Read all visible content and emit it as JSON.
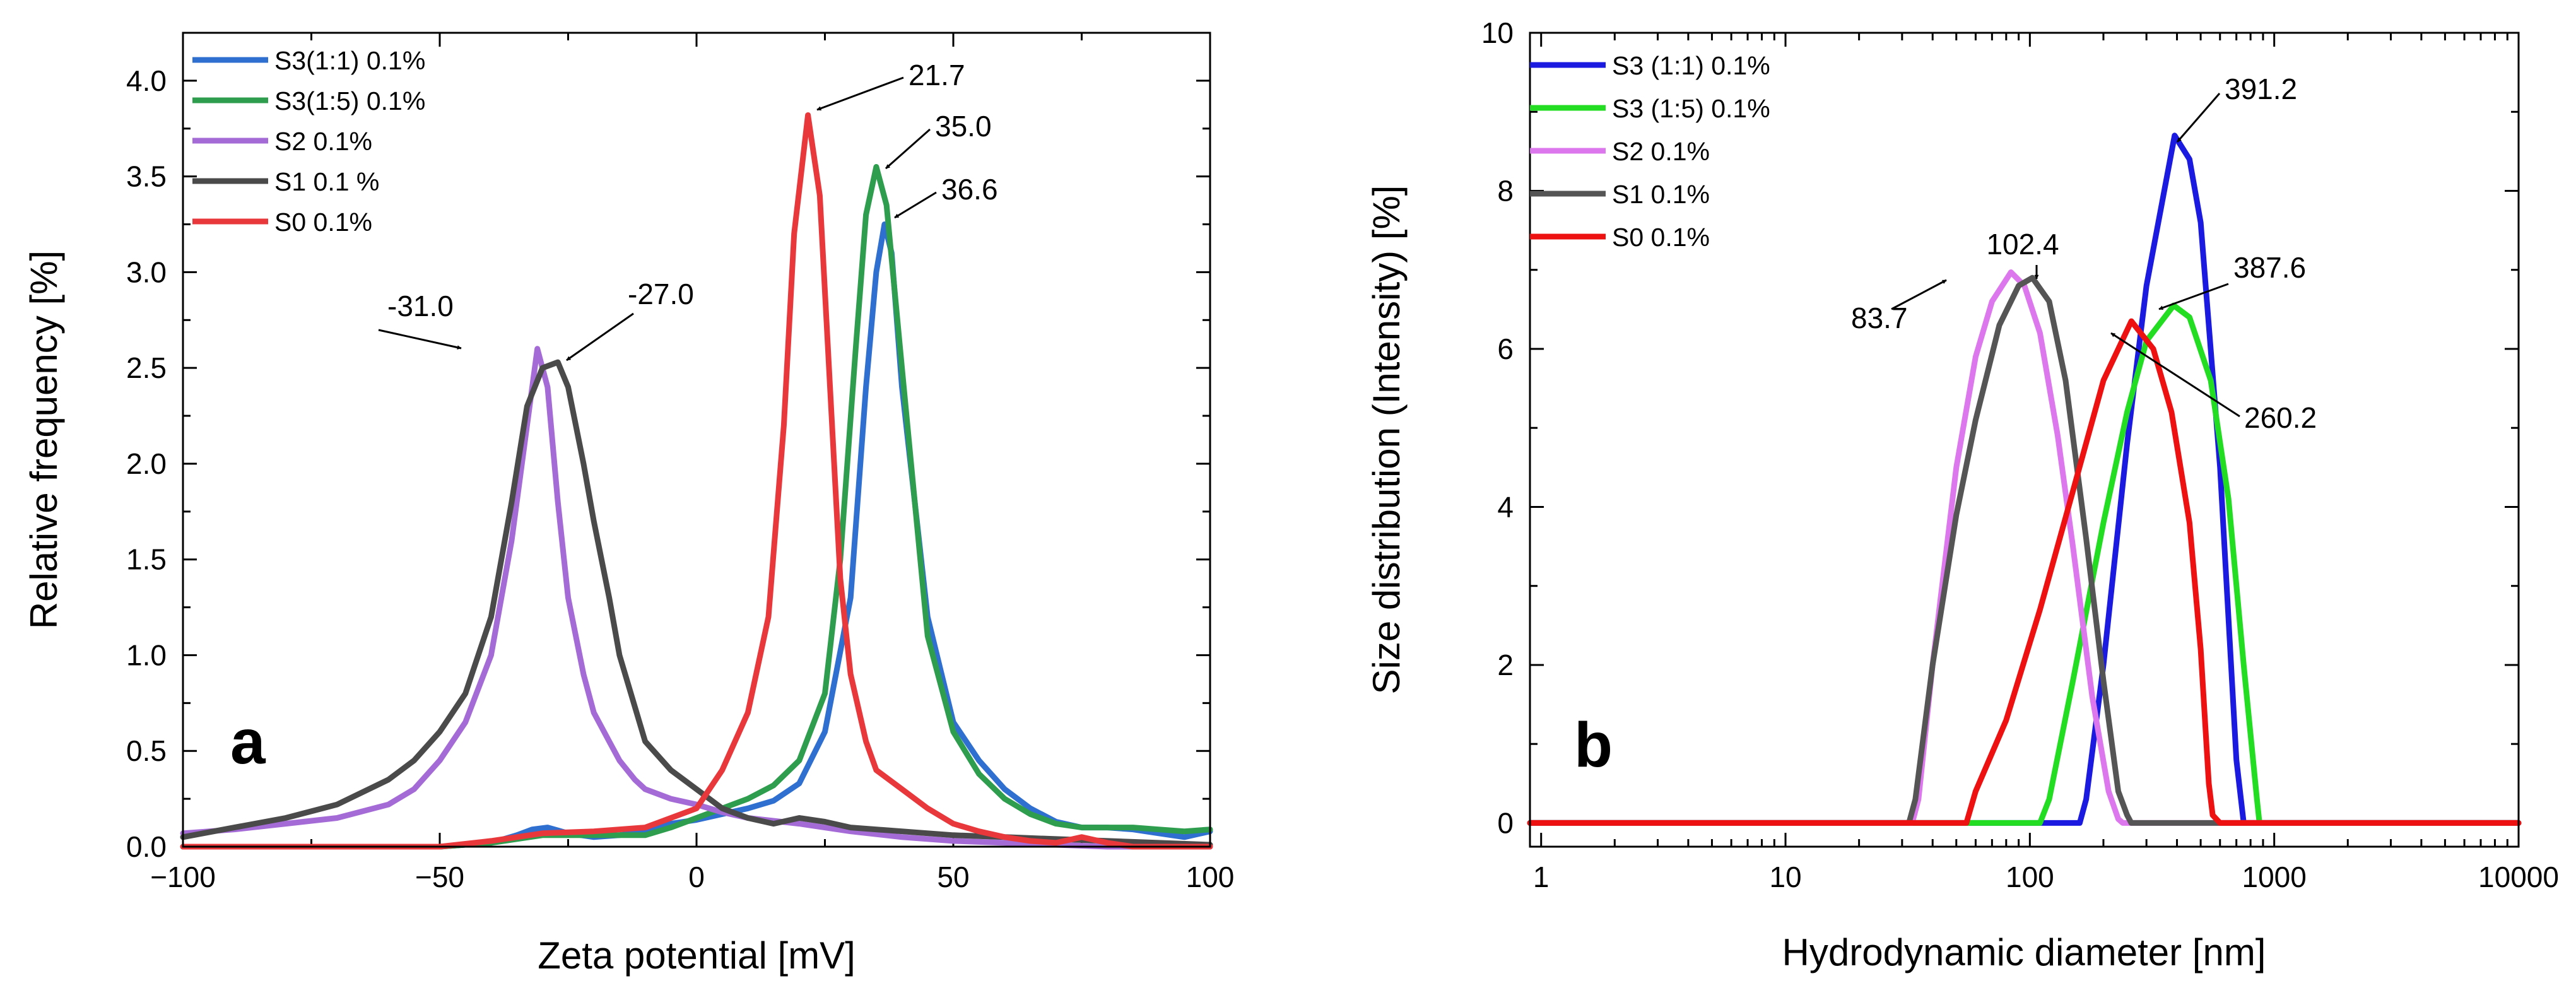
{
  "chart_data": [
    {
      "panel": "a",
      "type": "line",
      "panel_label": "a",
      "xlabel": "Zeta potential [mV]",
      "ylabel": "Relative frequency [%]",
      "xlim": [
        -100,
        100
      ],
      "ylim": [
        0,
        4.25
      ],
      "x_scale": "linear",
      "x_ticks": [
        -100,
        -50,
        0,
        50,
        100
      ],
      "x_tick_labels": [
        "−100",
        "−50",
        "0",
        "50",
        "100"
      ],
      "y_ticks": [
        0,
        0.5,
        1,
        1.5,
        2,
        2.5,
        3,
        3.5,
        4
      ],
      "y_tick_labels": [
        "0.0",
        "0.5",
        "1.0",
        "1.5",
        "2.0",
        "2.5",
        "3.0",
        "3.5",
        "4.0"
      ],
      "legend_position": "top-left",
      "series": [
        {
          "name": "S3(1:1) 0.1%",
          "color": "#2f6fd0",
          "x": [
            -100,
            -50,
            -40,
            -35,
            -32,
            -29,
            -25,
            -20,
            -15,
            -10,
            -5,
            0,
            5,
            10,
            15,
            20,
            25,
            30,
            33,
            35,
            36.6,
            38,
            40,
            45,
            50,
            55,
            60,
            65,
            70,
            75,
            80,
            85,
            90,
            95,
            100
          ],
          "y": [
            0,
            0,
            0.02,
            0.06,
            0.09,
            0.1,
            0.07,
            0.05,
            0.06,
            0.08,
            0.12,
            0.14,
            0.17,
            0.2,
            0.24,
            0.33,
            0.6,
            1.3,
            2.4,
            3.0,
            3.25,
            3.1,
            2.4,
            1.2,
            0.65,
            0.45,
            0.3,
            0.2,
            0.13,
            0.1,
            0.1,
            0.09,
            0.07,
            0.05,
            0.08
          ]
        },
        {
          "name": "S3(1:5) 0.1%",
          "color": "#2e9e4e",
          "x": [
            -100,
            -50,
            -40,
            -30,
            -20,
            -10,
            -5,
            0,
            5,
            10,
            15,
            20,
            25,
            28,
            31,
            33,
            35,
            37,
            40,
            45,
            50,
            55,
            60,
            65,
            70,
            75,
            80,
            85,
            90,
            95,
            100
          ],
          "y": [
            0,
            0,
            0.02,
            0.06,
            0.06,
            0.06,
            0.1,
            0.15,
            0.2,
            0.25,
            0.32,
            0.45,
            0.8,
            1.5,
            2.6,
            3.3,
            3.55,
            3.35,
            2.5,
            1.1,
            0.6,
            0.38,
            0.25,
            0.17,
            0.12,
            0.1,
            0.1,
            0.1,
            0.09,
            0.08,
            0.09
          ]
        },
        {
          "name": "S2 0.1%",
          "color": "#a46ad6",
          "x": [
            -100,
            -90,
            -80,
            -70,
            -60,
            -55,
            -50,
            -45,
            -40,
            -36,
            -33,
            -31,
            -29,
            -27,
            -25,
            -22,
            -20,
            -17,
            -15,
            -12,
            -10,
            -5,
            0,
            5,
            10,
            20,
            30,
            40,
            50,
            60,
            70,
            80,
            90,
            100
          ],
          "y": [
            0.07,
            0.09,
            0.12,
            0.15,
            0.22,
            0.3,
            0.45,
            0.65,
            1.0,
            1.6,
            2.2,
            2.6,
            2.4,
            1.8,
            1.3,
            0.9,
            0.7,
            0.55,
            0.45,
            0.35,
            0.3,
            0.25,
            0.22,
            0.18,
            0.15,
            0.12,
            0.08,
            0.05,
            0.03,
            0.02,
            0.01,
            0,
            0,
            0
          ]
        },
        {
          "name": "S1 0.1 %",
          "color": "#4a4a4a",
          "x": [
            -100,
            -90,
            -80,
            -70,
            -60,
            -55,
            -50,
            -45,
            -40,
            -36,
            -33,
            -30,
            -27,
            -25,
            -22,
            -20,
            -17,
            -15,
            -10,
            -5,
            0,
            5,
            10,
            15,
            20,
            25,
            30,
            40,
            50,
            60,
            70,
            80,
            90,
            100
          ],
          "y": [
            0.05,
            0.1,
            0.15,
            0.22,
            0.35,
            0.45,
            0.6,
            0.8,
            1.2,
            1.8,
            2.3,
            2.5,
            2.53,
            2.4,
            2.0,
            1.7,
            1.3,
            1.0,
            0.55,
            0.4,
            0.3,
            0.2,
            0.15,
            0.12,
            0.15,
            0.13,
            0.1,
            0.08,
            0.06,
            0.05,
            0.04,
            0.03,
            0.02,
            0.01
          ]
        },
        {
          "name": "S0 0.1%",
          "color": "#e8383c",
          "x": [
            -100,
            -50,
            -40,
            -30,
            -20,
            -10,
            0,
            5,
            10,
            14,
            17,
            19,
            21.7,
            24,
            26,
            28,
            30,
            33,
            35,
            40,
            45,
            50,
            55,
            60,
            65,
            70,
            75,
            80,
            85,
            90,
            100
          ],
          "y": [
            0,
            0,
            0.03,
            0.07,
            0.08,
            0.1,
            0.2,
            0.4,
            0.7,
            1.2,
            2.2,
            3.2,
            3.82,
            3.4,
            2.4,
            1.4,
            0.9,
            0.55,
            0.4,
            0.3,
            0.2,
            0.12,
            0.08,
            0.05,
            0.03,
            0.02,
            0.05,
            0.02,
            0,
            0,
            0
          ]
        }
      ],
      "annotations": [
        {
          "text": "-31.0",
          "x": -31.0,
          "y": 2.6
        },
        {
          "text": "-27.0",
          "x": -27.0,
          "y": 2.53
        },
        {
          "text": "21.7",
          "x": 21.7,
          "y": 3.82
        },
        {
          "text": "35.0",
          "x": 35.0,
          "y": 3.55
        },
        {
          "text": "36.6",
          "x": 36.6,
          "y": 3.25
        }
      ]
    },
    {
      "panel": "b",
      "type": "line",
      "panel_label": "b",
      "xlabel": "Hydrodynamic diameter [nm]",
      "ylabel": "Size distribution (Intensity) [%]",
      "xlim": [
        0.9,
        10000
      ],
      "ylim": [
        -0.3,
        10
      ],
      "x_scale": "log",
      "x_ticks": [
        1,
        10,
        100,
        1000,
        10000
      ],
      "x_tick_labels": [
        "1",
        "10",
        "100",
        "1000",
        "10000"
      ],
      "y_ticks": [
        0,
        2,
        4,
        6,
        8,
        10
      ],
      "y_tick_labels": [
        "0",
        "2",
        "4",
        "6",
        "8",
        "10"
      ],
      "legend_position": "top-left",
      "series": [
        {
          "name": "S3 (1:1) 0.1%",
          "color": "#1a1ae0",
          "x": [
            0.9,
            100,
            160,
            170,
            200,
            250,
            300,
            391.2,
            450,
            500,
            600,
            700,
            750,
            10000
          ],
          "y": [
            0,
            0,
            0,
            0.3,
            2.0,
            4.8,
            6.8,
            8.7,
            8.4,
            7.6,
            4.5,
            0.8,
            0,
            0
          ]
        },
        {
          "name": "S3 (1:5) 0.1%",
          "color": "#22dd22",
          "x": [
            0.9,
            110,
            120,
            150,
            200,
            250,
            300,
            387.6,
            450,
            550,
            650,
            750,
            850,
            870,
            10000
          ],
          "y": [
            0,
            0,
            0.3,
            1.8,
            3.8,
            5.2,
            6.1,
            6.55,
            6.4,
            5.6,
            4.1,
            2.0,
            0.3,
            0,
            0
          ]
        },
        {
          "name": "S2 0.1%",
          "color": "#dd77ee",
          "x": [
            0.9,
            33,
            35,
            40,
            50,
            60,
            70,
            83.7,
            95,
            110,
            130,
            150,
            180,
            210,
            230,
            240,
            10000
          ],
          "y": [
            0,
            0,
            0.3,
            2.0,
            4.5,
            5.9,
            6.6,
            6.97,
            6.8,
            6.2,
            4.9,
            3.5,
            1.6,
            0.4,
            0.05,
            0,
            0
          ]
        },
        {
          "name": "S1 0.1%",
          "color": "#555555",
          "x": [
            0.9,
            32,
            34,
            40,
            50,
            60,
            75,
            90,
            102.4,
            120,
            140,
            170,
            200,
            230,
            250,
            260,
            10000
          ],
          "y": [
            0,
            0,
            0.3,
            2.0,
            3.9,
            5.1,
            6.3,
            6.8,
            6.9,
            6.6,
            5.6,
            3.6,
            1.8,
            0.4,
            0.1,
            0,
            0
          ]
        },
        {
          "name": "S0 0.1%",
          "color": "#ee1111",
          "x": [
            0.9,
            55,
            60,
            80,
            110,
            150,
            200,
            260.2,
            320,
            380,
            450,
            500,
            540,
            560,
            600,
            10000
          ],
          "y": [
            0,
            0,
            0.4,
            1.3,
            2.7,
            4.2,
            5.6,
            6.35,
            6.0,
            5.2,
            3.8,
            2.2,
            0.5,
            0.1,
            0,
            0
          ]
        }
      ],
      "annotations": [
        {
          "text": "102.4",
          "x": 102.4,
          "y": 6.9
        },
        {
          "text": "83.7",
          "x": 83.7,
          "y": 6.97
        },
        {
          "text": "391.2",
          "x": 391.2,
          "y": 8.7
        },
        {
          "text": "387.6",
          "x": 387.6,
          "y": 6.55
        },
        {
          "text": "260.2",
          "x": 260.2,
          "y": 6.35
        }
      ]
    }
  ]
}
